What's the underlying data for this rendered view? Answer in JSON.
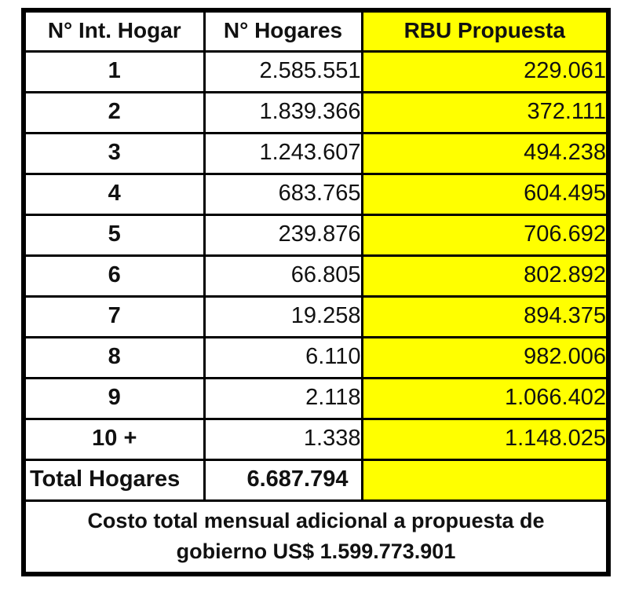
{
  "table": {
    "headers": [
      "N° Int. Hogar",
      "N° Hogares",
      "RBU Propuesta"
    ],
    "rows": [
      {
        "members": "1",
        "hogares": "2.585.551",
        "rbu": "229.061"
      },
      {
        "members": "2",
        "hogares": "1.839.366",
        "rbu": "372.111"
      },
      {
        "members": "3",
        "hogares": "1.243.607",
        "rbu": "494.238"
      },
      {
        "members": "4",
        "hogares": "683.765",
        "rbu": "604.495"
      },
      {
        "members": "5",
        "hogares": "239.876",
        "rbu": "706.692"
      },
      {
        "members": "6",
        "hogares": "66.805",
        "rbu": "802.892"
      },
      {
        "members": "7",
        "hogares": "19.258",
        "rbu": "894.375"
      },
      {
        "members": "8",
        "hogares": "6.110",
        "rbu": "982.006"
      },
      {
        "members": "9",
        "hogares": "2.118",
        "rbu": "1.066.402"
      },
      {
        "members": "10 +",
        "hogares": "1.338",
        "rbu": "1.148.025"
      }
    ],
    "total": {
      "label": "Total Hogares",
      "hogares": "6.687.794",
      "rbu": ""
    },
    "footer_line1": "Costo total mensual adicional a propuesta de",
    "footer_line2": "gobierno US$ 1.599.773.901"
  },
  "colors": {
    "highlight": "#ffff00",
    "border": "#000000",
    "text": "#111111",
    "background": "#ffffff"
  },
  "chart_data": {
    "type": "table",
    "title": "",
    "columns": [
      "N° Int. Hogar",
      "N° Hogares",
      "RBU Propuesta"
    ],
    "rows": [
      [
        "1",
        2585551,
        229061
      ],
      [
        "2",
        1839366,
        372111
      ],
      [
        "3",
        1243607,
        494238
      ],
      [
        "4",
        683765,
        604495
      ],
      [
        "5",
        239876,
        706692
      ],
      [
        "6",
        66805,
        802892
      ],
      [
        "7",
        19258,
        894375
      ],
      [
        "8",
        6110,
        982006
      ],
      [
        "9",
        2118,
        1066402
      ],
      [
        "10 +",
        1338,
        1148025
      ]
    ],
    "total_row": [
      "Total Hogares",
      6687794,
      null
    ],
    "annotations": [
      "Costo total mensual adicional a propuesta de gobierno US$ 1.599.773.901"
    ],
    "layout_hints": {
      "highlighted_column": "RBU Propuesta",
      "highlight_color": "#ffff00",
      "number_format": "dot thousands separator"
    }
  }
}
